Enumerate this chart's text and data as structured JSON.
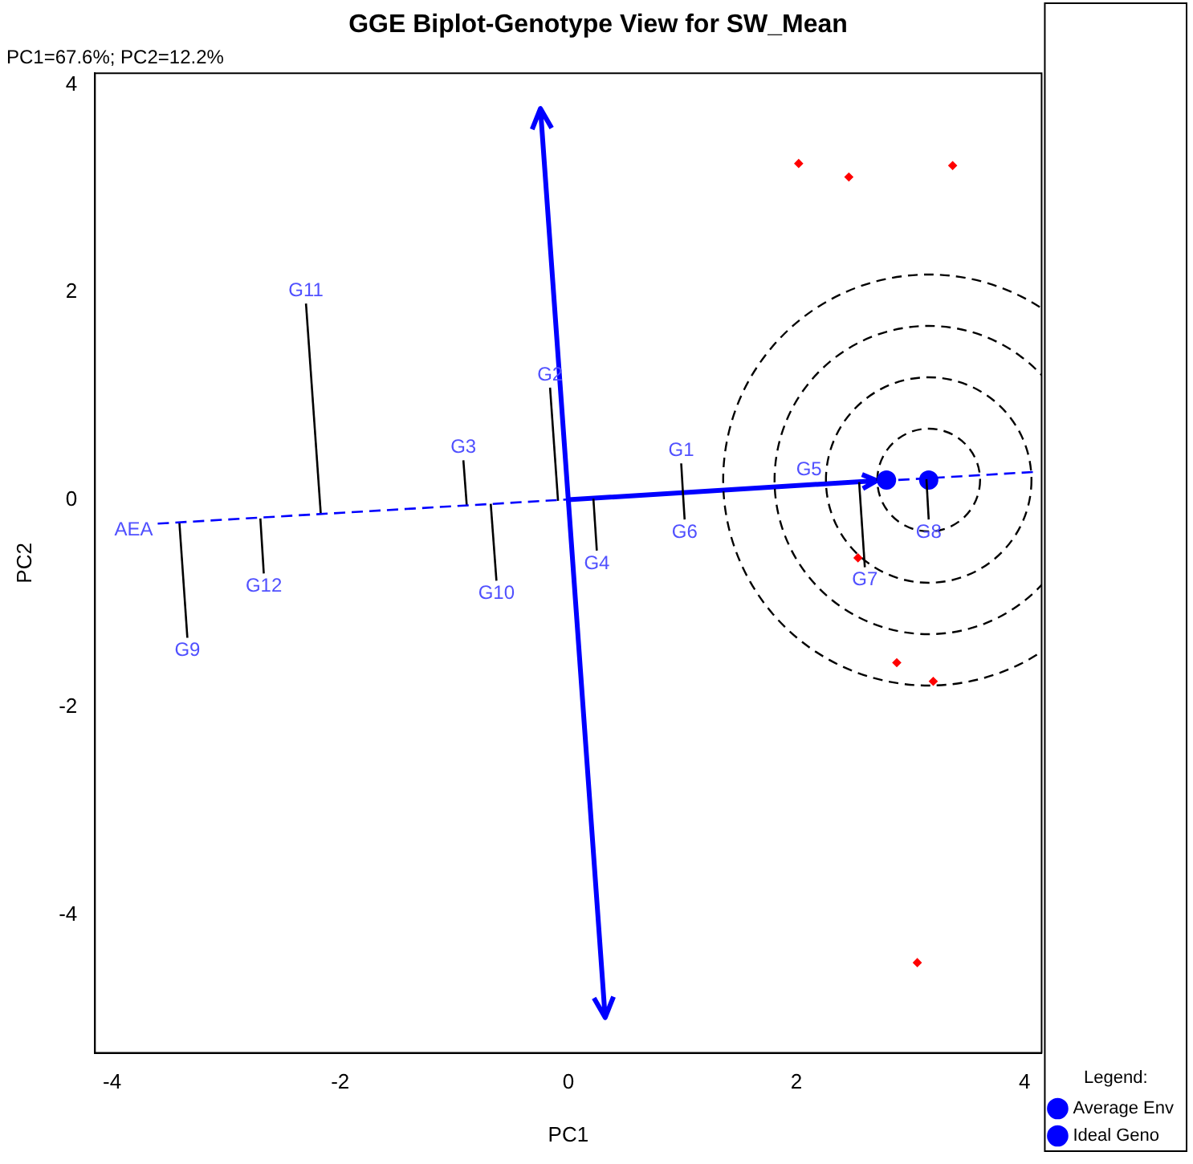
{
  "chart_data": {
    "type": "scatter",
    "title": "GGE Biplot-Genotype View for SW_Mean",
    "subtitle": "PC1=67.6%; PC2=12.2%",
    "xlabel": "PC1",
    "ylabel": "PC2",
    "legend_title": "Legend:",
    "legend": "bottom right",
    "grid": false,
    "xlim": [
      -4.15,
      4.15
    ],
    "ylim": [
      -5.33,
      4.11
    ],
    "xticks": [
      -4,
      -2,
      0,
      2,
      4
    ],
    "yticks": [
      -4,
      -2,
      0,
      2,
      4
    ],
    "series": [
      {
        "type": "line",
        "color": "#0000ff",
        "line_style": "dashed",
        "x": [
          -3.6,
          4.12
        ],
        "values": [
          -0.23,
          0.27
        ]
      },
      {
        "type": "line",
        "color": "#000000",
        "x": [
          -2.3,
          -2.17
        ],
        "values": [
          1.89,
          -0.14
        ]
      },
      {
        "type": "line",
        "color": "#000000",
        "x": [
          -2.67,
          -2.7
        ],
        "values": [
          -0.71,
          -0.18
        ]
      },
      {
        "type": "line",
        "color": "#000000",
        "x": [
          -3.34,
          -3.41
        ],
        "values": [
          -1.33,
          -0.22
        ]
      },
      {
        "type": "line",
        "color": "#000000",
        "x": [
          -0.92,
          -0.89
        ],
        "values": [
          0.38,
          -0.06
        ]
      },
      {
        "type": "line",
        "color": "#000000",
        "x": [
          -0.63,
          -0.68
        ],
        "values": [
          -0.78,
          -0.04
        ]
      },
      {
        "type": "line",
        "color": "#000000",
        "x": [
          -0.16,
          -0.09
        ],
        "values": [
          1.08,
          -0.01
        ]
      },
      {
        "type": "line",
        "color": "#000000",
        "x": [
          0.25,
          0.22
        ],
        "values": [
          -0.49,
          0.01
        ]
      },
      {
        "type": "line",
        "color": "#000000",
        "x": [
          0.99,
          1.005,
          1.02
        ],
        "values": [
          0.35,
          0.07,
          -0.19
        ]
      },
      {
        "type": "line",
        "color": "#000000",
        "x": [
          2.6,
          2.55
        ],
        "values": [
          -0.65,
          0.17
        ]
      },
      {
        "type": "line",
        "color": "#000000",
        "x": [
          3.16,
          3.14
        ],
        "values": [
          -0.19,
          0.2
        ]
      },
      {
        "type": "scatter",
        "color": "#ff0000",
        "marker": "diamond",
        "x": [
          2.02,
          2.46,
          3.37,
          2.88,
          3.2,
          3.06,
          2.54
        ],
        "values": [
          3.24,
          3.11,
          3.22,
          -1.57,
          -1.75,
          -4.46,
          -0.56
        ]
      },
      {
        "type": "scatter",
        "name": "Average Env",
        "color": "#0000ff",
        "marker": "circle",
        "x": [
          2.79
        ],
        "values": [
          0.19
        ]
      },
      {
        "type": "scatter",
        "name": "Ideal Geno",
        "color": "#0000ff",
        "marker": "circle",
        "x": [
          3.16
        ],
        "values": [
          0.19
        ]
      }
    ],
    "annotations": [
      "AEA",
      {
        "text": "G1",
        "x": 0.99,
        "y": 0.35
      },
      {
        "text": "G2",
        "x": -0.16,
        "y": 1.08
      },
      {
        "text": "G3",
        "x": -0.92,
        "y": 0.38
      },
      {
        "text": "G4",
        "x": 0.25,
        "y": -0.49
      },
      {
        "text": "G5",
        "x": 2.11,
        "y": 0.16
      },
      {
        "text": "G6",
        "x": 1.02,
        "y": -0.19
      },
      {
        "text": "G7",
        "x": 2.6,
        "y": -0.65
      },
      {
        "text": "G8",
        "x": 3.16,
        "y": -0.19
      },
      {
        "text": "G9",
        "x": -3.34,
        "y": -1.33
      },
      {
        "text": "G10",
        "x": -0.63,
        "y": -0.78
      },
      {
        "text": "G11",
        "x": -2.3,
        "y": 1.89
      },
      {
        "text": "G12",
        "x": -2.67,
        "y": -0.71
      }
    ]
  }
}
